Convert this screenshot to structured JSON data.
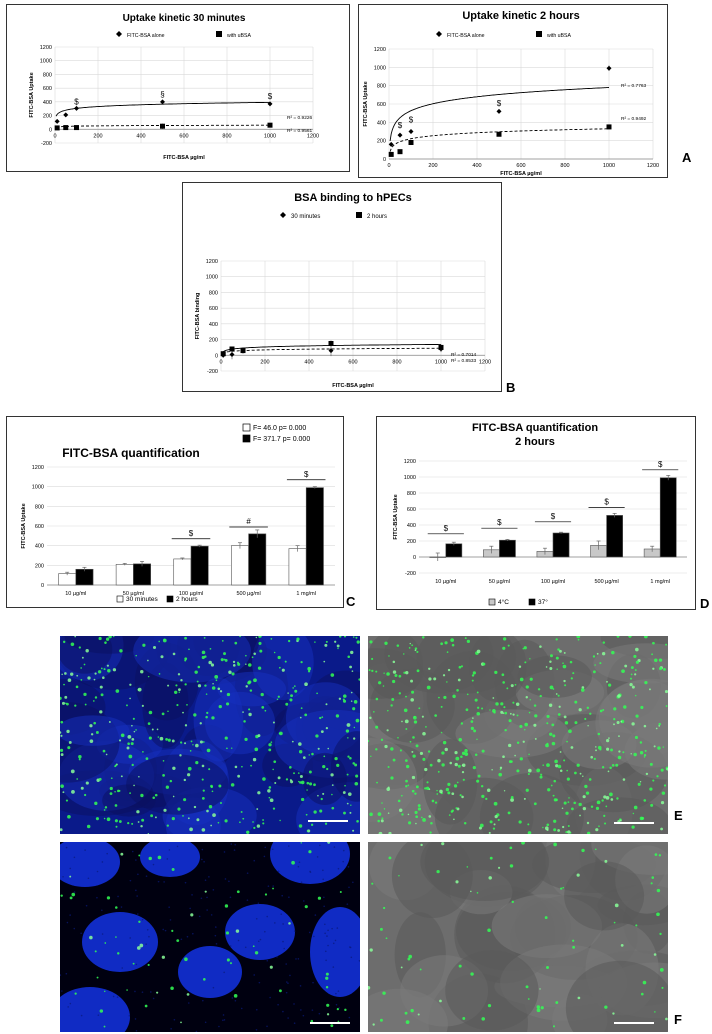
{
  "figure_labels": {
    "A": "A",
    "B": "B",
    "C": "C",
    "D": "D",
    "E": "E",
    "F": "F"
  },
  "chart_data": [
    {
      "id": "A1",
      "type": "scatter",
      "title": "Uptake kinetic 30 minutes",
      "xlabel": "FITC-BSA µg/ml",
      "ylabel": "FITC-BSA Uptake",
      "xlim": [
        0,
        1200
      ],
      "ylim": [
        -200,
        1200
      ],
      "xticks": [
        "0",
        "200",
        "400",
        "600",
        "800",
        "1000",
        "1200"
      ],
      "yticks": [
        "-200",
        "0",
        "200",
        "400",
        "600",
        "800",
        "1000",
        "1200"
      ],
      "legend": [
        "FITC-BSA alone",
        "with uBSA"
      ],
      "series": [
        {
          "name": "FITC-BSA alone",
          "marker": "diamond",
          "x": [
            10,
            50,
            100,
            500,
            1000
          ],
          "y": [
            115,
            210,
            305,
            400,
            370
          ],
          "err": [
            20,
            15,
            15,
            25,
            20
          ],
          "fit": "solid"
        },
        {
          "name": "with uBSA",
          "marker": "square",
          "x": [
            10,
            50,
            100,
            500,
            1000
          ],
          "y": [
            20,
            25,
            25,
            45,
            60
          ],
          "err": [
            10,
            15,
            20,
            40,
            30
          ],
          "fit": "dashed"
        }
      ],
      "fit_params": [
        [
          130,
          38
        ],
        [
          18,
          6
        ]
      ],
      "r2": [
        "R² = 0.9226",
        "R² = 0.9561"
      ],
      "annotations": [
        {
          "x": 500,
          "y": 470,
          "text": "§"
        },
        {
          "x": 1000,
          "y": 440,
          "text": "$"
        },
        {
          "x": 100,
          "y": 360,
          "text": "$"
        }
      ]
    },
    {
      "id": "A2",
      "type": "scatter",
      "title": "Uptake kinetic 2 hours",
      "xlabel": "FITC-BSA µg/ml",
      "ylabel": "FITC-BSA Uptake",
      "xlim": [
        0,
        1200
      ],
      "ylim": [
        0,
        1200
      ],
      "xticks": [
        "0",
        "200",
        "400",
        "600",
        "800",
        "1000",
        "1200"
      ],
      "yticks": [
        "0",
        "200",
        "400",
        "600",
        "800",
        "1000",
        "1200"
      ],
      "legend": [
        "FITC-BSA alone",
        "with uBSA"
      ],
      "series": [
        {
          "name": "FITC-BSA alone",
          "marker": "diamond",
          "x": [
            10,
            50,
            100,
            500,
            1000
          ],
          "y": [
            160,
            260,
            300,
            520,
            990
          ],
          "err": [
            20,
            20,
            25,
            20,
            30
          ],
          "fit": "solid"
        },
        {
          "name": "with uBSA",
          "marker": "square",
          "x": [
            10,
            50,
            100,
            500,
            1000
          ],
          "y": [
            50,
            80,
            180,
            270,
            350
          ],
          "err": [
            15,
            15,
            20,
            20,
            25
          ],
          "fit": "dashed"
        }
      ],
      "fit_params": [
        [
          20,
          110
        ],
        [
          5,
          47
        ]
      ],
      "r2": [
        "R² = 0.7763",
        "R² = 0.9492"
      ],
      "annotations": [
        {
          "x": 500,
          "y": 580,
          "text": "$"
        },
        {
          "x": 100,
          "y": 400,
          "text": "$"
        },
        {
          "x": 50,
          "y": 340,
          "text": "$"
        }
      ]
    },
    {
      "id": "B",
      "type": "scatter",
      "title": "BSA binding to hPECs",
      "xlabel": "FITC-BSA µg/ml",
      "ylabel": "FITC-BSA binding",
      "xlim": [
        0,
        1200
      ],
      "ylim": [
        -200,
        1200
      ],
      "xticks": [
        "0",
        "200",
        "400",
        "600",
        "800",
        "1000",
        "1200"
      ],
      "yticks": [
        "-200",
        "0",
        "200",
        "400",
        "600",
        "800",
        "1000",
        "1200"
      ],
      "legend": [
        "30 minutes",
        "2 hours"
      ],
      "series": [
        {
          "name": "30 minutes",
          "marker": "diamond",
          "x": [
            10,
            50,
            100,
            500,
            1000
          ],
          "y": [
            0,
            10,
            60,
            60,
            80
          ],
          "err": [
            30,
            60,
            40,
            70,
            40
          ],
          "fit": "dashed"
        },
        {
          "name": "2 hours",
          "marker": "square",
          "x": [
            10,
            50,
            100,
            500,
            1000
          ],
          "y": [
            20,
            80,
            60,
            150,
            100
          ],
          "err": [
            20,
            30,
            30,
            40,
            40
          ],
          "fit": "solid"
        }
      ],
      "fit_params": [
        [
          0,
          13
        ],
        [
          0,
          20
        ]
      ],
      "r2": [
        "R² = 0.7014",
        "R² = 0.8533"
      ]
    },
    {
      "id": "C",
      "type": "bar",
      "title": "FITC-BSA quantification",
      "ylabel": "FITC-BSA Uptake",
      "ylim": [
        0,
        1200
      ],
      "yticks": [
        "0",
        "200",
        "400",
        "600",
        "800",
        "1000",
        "1200"
      ],
      "categories": [
        "10 µg/ml",
        "50 µg/ml",
        "100 µg/ml",
        "500 µg/ml",
        "1 mg/ml"
      ],
      "series": [
        {
          "name": "30 minutes",
          "color": "#ffffff",
          "values": [
            115,
            210,
            265,
            400,
            370
          ],
          "err": [
            15,
            10,
            10,
            30,
            30
          ]
        },
        {
          "name": "2 hours",
          "color": "#000000",
          "values": [
            160,
            215,
            395,
            520,
            990
          ],
          "err": [
            20,
            25,
            10,
            40,
            10
          ]
        }
      ],
      "legend_top": [
        "F=  46.0  p= 0.000",
        "F= 371.7 p= 0.000"
      ],
      "annotations": [
        {
          "cat": 2,
          "y": 470,
          "text": "$"
        },
        {
          "cat": 3,
          "y": 590,
          "text": "#"
        },
        {
          "cat": 4,
          "y": 1070,
          "text": "$"
        }
      ]
    },
    {
      "id": "D",
      "type": "bar",
      "title": [
        "FITC-BSA quantification",
        "2 hours"
      ],
      "ylabel": "FITC-BSA Uptake",
      "ylim": [
        -200,
        1200
      ],
      "yticks": [
        "-200",
        "0",
        "200",
        "400",
        "600",
        "800",
        "1000",
        "1200"
      ],
      "categories": [
        "10 µg/ml",
        "50 µg/ml",
        "100 µg/ml",
        "500 µg/ml",
        "1 mg/ml"
      ],
      "series": [
        {
          "name": "4°C",
          "color": "#c8c8c8",
          "values": [
            0,
            90,
            70,
            145,
            100
          ],
          "err": [
            50,
            45,
            40,
            55,
            35
          ]
        },
        {
          "name": "37°",
          "color": "#000000",
          "values": [
            165,
            210,
            300,
            520,
            990
          ],
          "err": [
            20,
            10,
            10,
            25,
            30
          ]
        }
      ],
      "annotations": [
        {
          "cat": 0,
          "y": 290,
          "text": "$"
        },
        {
          "cat": 1,
          "y": 360,
          "text": "$"
        },
        {
          "cat": 2,
          "y": 440,
          "text": "$"
        },
        {
          "cat": 3,
          "y": 620,
          "text": "$"
        },
        {
          "cat": 4,
          "y": 1090,
          "text": "$"
        }
      ]
    }
  ],
  "micrographs": [
    {
      "id": "E-left",
      "channel": "blue-green"
    },
    {
      "id": "E-right",
      "channel": "gray-green"
    },
    {
      "id": "F-left",
      "channel": "blue-green-dark"
    },
    {
      "id": "F-right",
      "channel": "gray-green"
    }
  ]
}
